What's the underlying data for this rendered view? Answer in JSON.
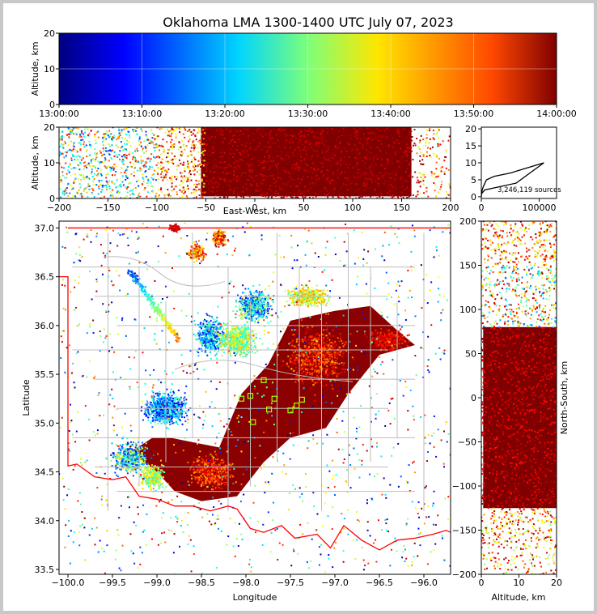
{
  "chart_data": [
    {
      "panel": "time-altitude",
      "type": "heatmap",
      "title": "Oklahoma LMA 1300-1400 UTC July 07, 2023",
      "ylabel": "Altitude, km",
      "xlabel": "",
      "ylim": [
        0,
        20
      ],
      "yticks": [
        "0",
        "10",
        "20"
      ],
      "xticks": [
        "13:00:00",
        "13:10:00",
        "13:20:00",
        "13:30:00",
        "13:40:00",
        "13:50:00",
        "14:00:00"
      ],
      "grid": true,
      "colormap": [
        "#00007f",
        "#0000ff",
        "#00d4ff",
        "#7dff7a",
        "#ffe600",
        "#ff4800",
        "#7f0000"
      ]
    },
    {
      "panel": "east-west-altitude",
      "type": "scatter",
      "xlabel": "East-West, km",
      "ylabel": "Altitude, km",
      "xlim": [
        -200,
        200
      ],
      "ylim": [
        0,
        20
      ],
      "xticks": [
        "−200",
        "−150",
        "−100",
        "−50",
        "0",
        "50",
        "100",
        "150",
        "200"
      ],
      "yticks": [
        "0",
        "10",
        "20"
      ]
    },
    {
      "panel": "altitude-histogram",
      "type": "line",
      "xticks": [
        "0",
        "100000"
      ],
      "yticks": [
        "0",
        "5",
        "10",
        "15",
        "20"
      ],
      "annotation": "3,246,119 sources",
      "x": [
        0,
        900,
        6000,
        60000,
        108000,
        50000,
        22000,
        9000,
        3500,
        1500,
        600,
        0
      ],
      "y": [
        0.5,
        1,
        2,
        4,
        10,
        7,
        6,
        5,
        3,
        2,
        1,
        0
      ],
      "peak_altitude_km": 10
    },
    {
      "panel": "plan-view",
      "type": "scatter",
      "xlabel": "Longitude",
      "ylabel": "Latitude",
      "xlim": [
        -100.1,
        -95.7
      ],
      "ylim": [
        33.45,
        37.07
      ],
      "xticks": [
        "−100.0",
        "−99.5",
        "−99.0",
        "−98.5",
        "−98.0",
        "−97.5",
        "−97.0",
        "−96.5",
        "−96.0"
      ],
      "yticks": [
        "33.5",
        "34.0",
        "34.5",
        "35.0",
        "35.5",
        "36.0",
        "36.5",
        "37.0"
      ],
      "station_color": "#aaff00",
      "border_color": "#ff0000"
    },
    {
      "panel": "altitude-north-south",
      "type": "scatter",
      "xlabel": "Altitude, km",
      "ylabel": "North-South, km",
      "xlim": [
        0,
        20
      ],
      "ylim": [
        -200,
        200
      ],
      "xticks": [
        "0",
        "10",
        "20"
      ],
      "yticks": [
        "−200",
        "−150",
        "−100",
        "−50",
        "0",
        "50",
        "100",
        "150",
        "200"
      ]
    }
  ]
}
